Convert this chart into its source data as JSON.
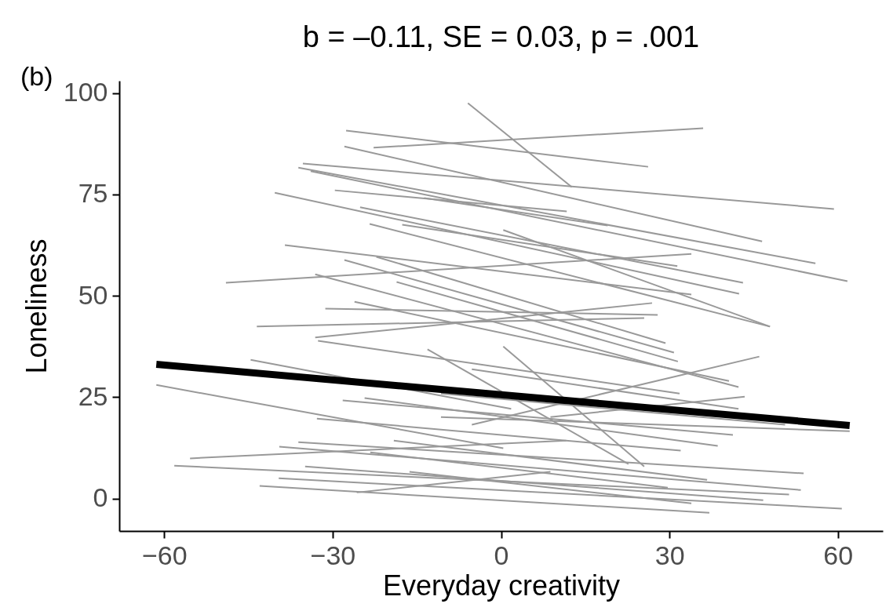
{
  "chart_data": {
    "type": "line",
    "title": "b = –0.11, SE = 0.03, p = .001",
    "xlabel": "Everyday creativity",
    "ylabel": "Loneliness",
    "annotations": [
      "(b)"
    ],
    "xlim": [
      -68,
      68
    ],
    "ylim": [
      -8,
      103
    ],
    "xticks": [
      -60,
      -30,
      0,
      30,
      60
    ],
    "yticks": [
      0,
      25,
      50,
      75,
      100
    ],
    "grid": false,
    "legend": false,
    "marker": "none",
    "line_style": "solid",
    "series": [
      {
        "color": "#999999",
        "x": [
          -5.9,
          12.6
        ],
        "values": [
          97.5,
          76.8
        ]
      },
      {
        "color": "#999999",
        "x": [
          -22.7,
          36.0
        ],
        "values": [
          86.5,
          91.3
        ]
      },
      {
        "color": "#999999",
        "x": [
          -27.6,
          26.2
        ],
        "values": [
          90.7,
          81.8
        ]
      },
      {
        "color": "#999999",
        "x": [
          -27.9,
          46.5
        ],
        "values": [
          86.8,
          63.4
        ]
      },
      {
        "color": "#999999",
        "x": [
          -35.3,
          59.3
        ],
        "values": [
          82.6,
          71.4
        ]
      },
      {
        "color": "#999999",
        "x": [
          -36.1,
          56.0
        ],
        "values": [
          81.6,
          58.0
        ]
      },
      {
        "color": "#999999",
        "x": [
          -33.9,
          61.7
        ],
        "values": [
          80.7,
          53.6
        ]
      },
      {
        "color": "#999999",
        "x": [
          -29.6,
          11.7
        ],
        "values": [
          76.0,
          70.8
        ]
      },
      {
        "color": "#999999",
        "x": [
          -13.7,
          19.0
        ],
        "values": [
          74.1,
          67.3
        ]
      },
      {
        "color": "#999999",
        "x": [
          -25.1,
          43.1
        ],
        "values": [
          71.8,
          53.2
        ]
      },
      {
        "color": "#999999",
        "x": [
          -40.3,
          42.4
        ],
        "values": [
          75.4,
          50.5
        ]
      },
      {
        "color": "#999999",
        "x": [
          -17.6,
          31.4
        ],
        "values": [
          67.5,
          57.3
        ]
      },
      {
        "color": "#999999",
        "x": [
          -23.4,
          47.9
        ],
        "values": [
          67.7,
          42.4
        ]
      },
      {
        "color": "#999999",
        "x": [
          -38.5,
          33.9
        ],
        "values": [
          62.5,
          50.3
        ]
      },
      {
        "color": "#999999",
        "x": [
          -22.2,
          29.3
        ],
        "values": [
          59.6,
          38.3
        ]
      },
      {
        "color": "#999999",
        "x": [
          -49.0,
          33.9
        ],
        "values": [
          53.2,
          60.3
        ]
      },
      {
        "color": "#999999",
        "x": [
          -27.9,
          30.8
        ],
        "values": [
          58.8,
          36.0
        ]
      },
      {
        "color": "#999999",
        "x": [
          -33.1,
          42.3
        ],
        "values": [
          55.3,
          27.5
        ]
      },
      {
        "color": "#999999",
        "x": [
          -18.6,
          31.5
        ],
        "values": [
          53.4,
          33.8
        ]
      },
      {
        "color": "#999999",
        "x": [
          -26.1,
          40.6
        ],
        "values": [
          48.5,
          29.0
        ]
      },
      {
        "color": "#999999",
        "x": [
          -31.3,
          27.9
        ],
        "values": [
          46.8,
          45.3
        ]
      },
      {
        "color": "#999999",
        "x": [
          -43.5,
          25.5
        ],
        "values": [
          42.4,
          44.5
        ]
      },
      {
        "color": "#999999",
        "x": [
          -33.1,
          26.9
        ],
        "values": [
          39.7,
          48.2
        ]
      },
      {
        "color": "#999999",
        "x": [
          -32.6,
          31.8
        ],
        "values": [
          38.9,
          25.9
        ]
      },
      {
        "color": "#999999",
        "x": [
          -44.6,
          1.8
        ],
        "values": [
          34.2,
          22.1
        ]
      },
      {
        "color": "#999999",
        "x": [
          -61.4,
          0.4
        ],
        "values": [
          28.0,
          12.4
        ]
      },
      {
        "color": "#999999",
        "x": [
          -28.2,
          41.3
        ],
        "values": [
          24.2,
          15.7
        ]
      },
      {
        "color": "#999999",
        "x": [
          -24.3,
          38.6
        ],
        "values": [
          24.8,
          13.0
        ]
      },
      {
        "color": "#999999",
        "x": [
          -32.8,
          32.0
        ],
        "values": [
          19.7,
          11.8
        ]
      },
      {
        "color": "#999999",
        "x": [
          -10.7,
          62.1
        ],
        "values": [
          20.1,
          16.6
        ]
      },
      {
        "color": "#999999",
        "x": [
          -36.1,
          53.9
        ],
        "values": [
          13.9,
          6.2
        ]
      },
      {
        "color": "#999999",
        "x": [
          -39.5,
          53.4
        ],
        "values": [
          12.8,
          2.1
        ]
      },
      {
        "color": "#999999",
        "x": [
          -55.4,
          11.6
        ],
        "values": [
          9.9,
          14.3
        ]
      },
      {
        "color": "#999999",
        "x": [
          -58.2,
          51.3
        ],
        "values": [
          8.1,
          1.0
        ]
      },
      {
        "color": "#999999",
        "x": [
          -34.9,
          46.7
        ],
        "values": [
          7.9,
          -0.4
        ]
      },
      {
        "color": "#999999",
        "x": [
          -39.6,
          60.7
        ],
        "values": [
          5.0,
          -2.5
        ]
      },
      {
        "color": "#999999",
        "x": [
          -43.0,
          37.1
        ],
        "values": [
          3.1,
          -3.5
        ]
      },
      {
        "color": "#999999",
        "x": [
          -25.7,
          8.8
        ],
        "values": [
          1.5,
          6.6
        ]
      },
      {
        "color": "#999999",
        "x": [
          -5.2,
          46.0
        ],
        "values": [
          18.2,
          35.0
        ]
      },
      {
        "color": "#999999",
        "x": [
          -13.1,
          22.7
        ],
        "values": [
          36.8,
          8.5
        ]
      },
      {
        "color": "#999999",
        "x": [
          0.4,
          47.9
        ],
        "values": [
          66.2,
          42.4
        ]
      },
      {
        "color": "#999999",
        "x": [
          0.4,
          25.5
        ],
        "values": [
          37.5,
          7.9
        ]
      },
      {
        "color": "#999999",
        "x": [
          -19.1,
          36.7
        ],
        "values": [
          14.3,
          4.6
        ]
      },
      {
        "color": "#999999",
        "x": [
          -16.3,
          33.9
        ],
        "values": [
          6.6,
          -1.2
        ]
      },
      {
        "color": "#999999",
        "x": [
          -23.3,
          29.7
        ],
        "values": [
          11.4,
          2.7
        ]
      },
      {
        "color": "#999999",
        "x": [
          -10.7,
          50.6
        ],
        "values": [
          25.9,
          18.2
        ]
      },
      {
        "color": "#999999",
        "x": [
          -5.2,
          42.3
        ],
        "values": [
          31.9,
          22.1
        ]
      },
      {
        "color": "#999999",
        "x": [
          8.8,
          43.4
        ],
        "values": [
          20.1,
          25.1
        ]
      },
      {
        "color": "#000000",
        "x": [
          -61.4,
          62.1
        ],
        "values": [
          33.1,
          18.0
        ]
      }
    ]
  }
}
